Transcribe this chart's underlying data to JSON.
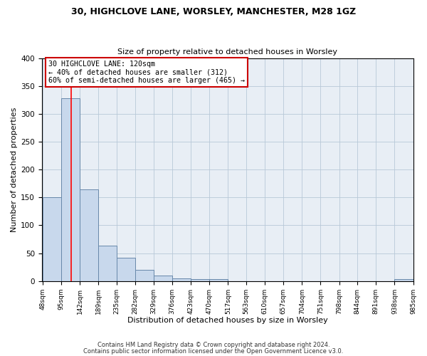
{
  "title": "30, HIGHCLOVE LANE, WORSLEY, MANCHESTER, M28 1GZ",
  "subtitle": "Size of property relative to detached houses in Worsley",
  "xlabel": "Distribution of detached houses by size in Worsley",
  "ylabel": "Number of detached properties",
  "bar_edges": [
    48,
    95,
    142,
    189,
    235,
    282,
    329,
    376,
    423,
    470,
    517,
    563,
    610,
    657,
    704,
    751,
    798,
    844,
    891,
    938,
    985
  ],
  "bar_heights": [
    151,
    328,
    164,
    64,
    42,
    20,
    10,
    5,
    3,
    3,
    0,
    0,
    0,
    0,
    0,
    0,
    0,
    0,
    0,
    3
  ],
  "bar_color": "#c8d8ec",
  "bar_edge_color": "#6888aa",
  "red_line_x": 120,
  "annotation_text": "30 HIGHCLOVE LANE: 120sqm\n← 40% of detached houses are smaller (312)\n60% of semi-detached houses are larger (465) →",
  "annotation_box_color": "#ffffff",
  "annotation_box_edge_color": "#cc0000",
  "annotation_text_color": "#000000",
  "tick_labels": [
    "48sqm",
    "95sqm",
    "142sqm",
    "189sqm",
    "235sqm",
    "282sqm",
    "329sqm",
    "376sqm",
    "423sqm",
    "470sqm",
    "517sqm",
    "563sqm",
    "610sqm",
    "657sqm",
    "704sqm",
    "751sqm",
    "798sqm",
    "844sqm",
    "891sqm",
    "938sqm",
    "985sqm"
  ],
  "ylim": [
    0,
    400
  ],
  "yticks": [
    0,
    50,
    100,
    150,
    200,
    250,
    300,
    350,
    400
  ],
  "footer_line1": "Contains HM Land Registry data © Crown copyright and database right 2024.",
  "footer_line2": "Contains public sector information licensed under the Open Government Licence v3.0.",
  "plot_bg_color": "#e8eef5",
  "background_color": "#ffffff",
  "grid_color": "#b8c8d8"
}
